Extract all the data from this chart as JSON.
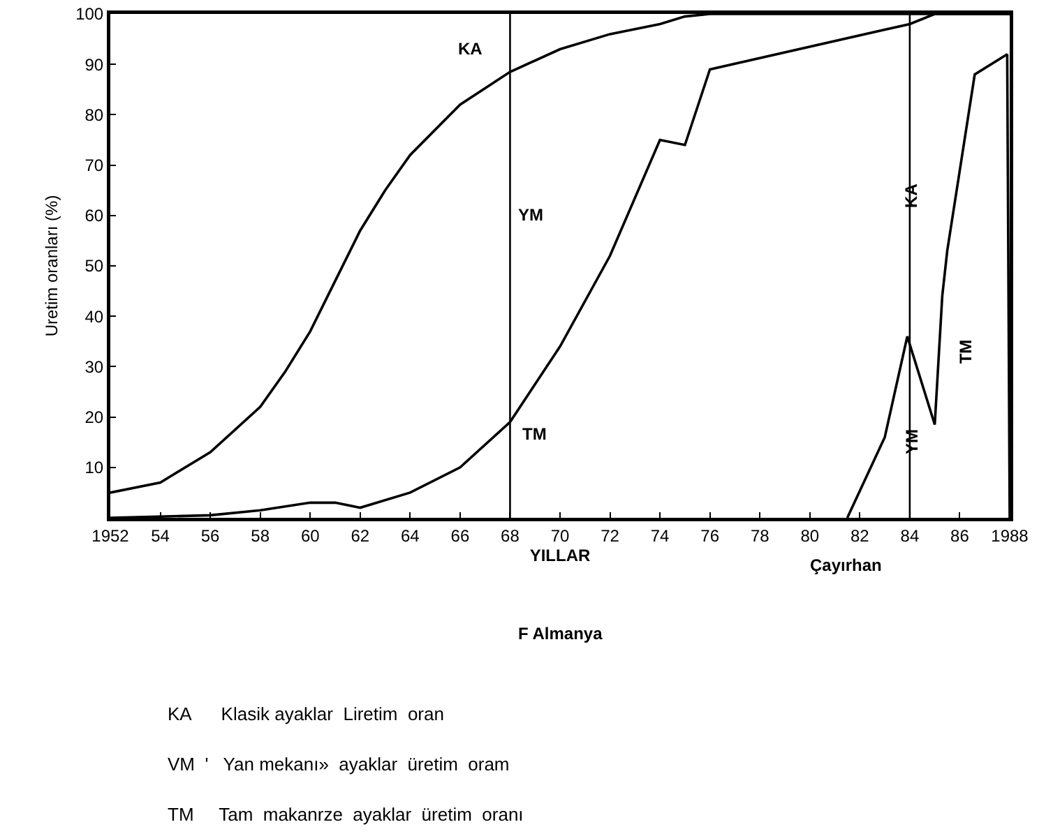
{
  "chart_data": {
    "type": "line",
    "xlabel": "YILLAR",
    "ylabel": "Uretim oranları (%)",
    "xlim": [
      1952,
      1988
    ],
    "ylim": [
      0,
      100
    ],
    "xticks": [
      {
        "value": 1952,
        "label": "1952"
      },
      {
        "value": 1954,
        "label": "54"
      },
      {
        "value": 1956,
        "label": "56"
      },
      {
        "value": 1958,
        "label": "58"
      },
      {
        "value": 1960,
        "label": "60"
      },
      {
        "value": 1962,
        "label": "62"
      },
      {
        "value": 1964,
        "label": "64"
      },
      {
        "value": 1966,
        "label": "66"
      },
      {
        "value": 1968,
        "label": "68"
      },
      {
        "value": 1970,
        "label": "70"
      },
      {
        "value": 1972,
        "label": "72"
      },
      {
        "value": 1974,
        "label": "74"
      },
      {
        "value": 1976,
        "label": "76"
      },
      {
        "value": 1978,
        "label": "78"
      },
      {
        "value": 1980,
        "label": "80"
      },
      {
        "value": 1982,
        "label": "82"
      },
      {
        "value": 1984,
        "label": "84"
      },
      {
        "value": 1986,
        "label": "86"
      },
      {
        "value": 1988,
        "label": "1988"
      }
    ],
    "yticks": [
      10,
      20,
      30,
      40,
      50,
      60,
      70,
      80,
      90,
      100
    ],
    "grid": false,
    "marker": "none",
    "line_style": "solid",
    "series": [
      {
        "color": "#000000",
        "x": [
          1952,
          1954,
          1956,
          1958,
          1959,
          1960,
          1961,
          1962,
          1963,
          1964,
          1966,
          1968,
          1970,
          1972,
          1974,
          1975,
          1976,
          1988
        ],
        "values": [
          5,
          7,
          13,
          22,
          29,
          37,
          47,
          57,
          65,
          72,
          82,
          88.5,
          93,
          96,
          98,
          99.5,
          100,
          100
        ]
      },
      {
        "color": "#000000",
        "x": [
          1952,
          1956,
          1958,
          1960,
          1961,
          1962,
          1964,
          1966,
          1968,
          1970,
          1972,
          1974,
          1975,
          1976,
          1984,
          1985,
          1988
        ],
        "values": [
          0,
          0.5,
          1.5,
          3,
          3,
          2,
          5,
          10,
          19,
          34,
          52,
          75,
          74,
          89,
          98,
          100,
          100
        ]
      },
      {
        "color": "#000000",
        "x": [
          1981.5,
          1983,
          1983.9,
          1985,
          1985.3,
          1985.5,
          1986.6,
          1987.9,
          1988
        ],
        "values": [
          0,
          16,
          36,
          18.5,
          44,
          53,
          88,
          92,
          0
        ]
      }
    ],
    "ref_lines": [
      {
        "axis": "x",
        "value": 1968,
        "color": "#000000",
        "line_style": "solid"
      },
      {
        "axis": "x",
        "value": 1984,
        "color": "#000000",
        "line_style": "solid"
      }
    ],
    "annotations": [
      "KA",
      "YM",
      "TM",
      "KA",
      "YM",
      "TM",
      "Çayırhan",
      "F Almanya",
      "KA      Klasik ayaklar  Liretim  oran",
      "VM  '   Yan mekanı»  ayaklar  üretim  oram",
      "TM     Tam  makanrze  ayaklar  üretim  oranı"
    ]
  }
}
